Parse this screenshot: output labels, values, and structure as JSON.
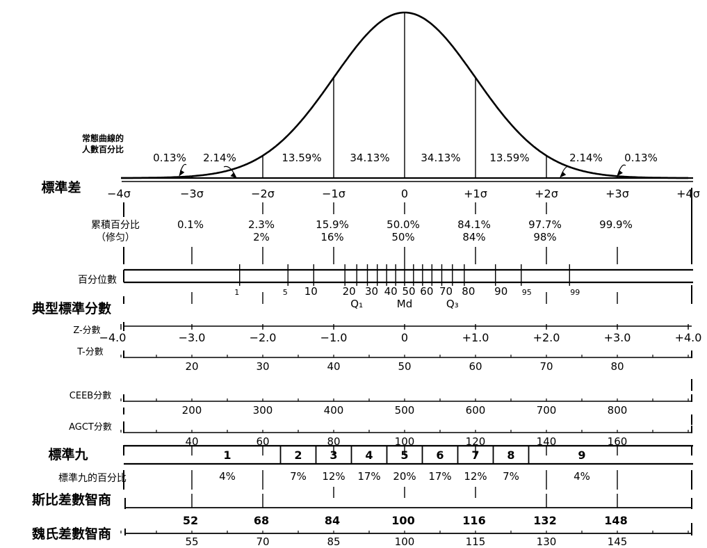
{
  "curve": {
    "label_lines": [
      "常態曲線的",
      "人數百分比"
    ],
    "segment_pcts": [
      "0.13%",
      "2.14%",
      "13.59%",
      "34.13%",
      "34.13%",
      "13.59%",
      "2.14%",
      "0.13%"
    ]
  },
  "sd": {
    "title": "標準差",
    "ticks": [
      "−4σ",
      "−3σ",
      "−2σ",
      "−1σ",
      "0",
      "+1σ",
      "+2σ",
      "+3σ",
      "+4σ"
    ]
  },
  "cumulative": {
    "title_lines": [
      "累積百分比",
      "（修匀）"
    ],
    "values": [
      "0.1%",
      "2.3%",
      "15.9%",
      "50.0%",
      "84.1%",
      "97.7%",
      "99.9%"
    ],
    "rounded": [
      "2%",
      "16%",
      "50%",
      "84%",
      "98%"
    ]
  },
  "percentile": {
    "title": "百分位數",
    "ticks": [
      {
        "p": 1,
        "label": "1"
      },
      {
        "p": 5,
        "label": "5"
      },
      {
        "p": 10,
        "label": "10"
      },
      {
        "p": 20,
        "label": "20"
      },
      {
        "p": 25,
        "label": ""
      },
      {
        "p": 30,
        "label": "30"
      },
      {
        "p": 35,
        "label": ""
      },
      {
        "p": 40,
        "label": "40"
      },
      {
        "p": 45,
        "label": ""
      },
      {
        "p": 50,
        "label": "50"
      },
      {
        "p": 55,
        "label": ""
      },
      {
        "p": 60,
        "label": "60"
      },
      {
        "p": 65,
        "label": ""
      },
      {
        "p": 70,
        "label": "70"
      },
      {
        "p": 75,
        "label": ""
      },
      {
        "p": 80,
        "label": "80"
      },
      {
        "p": 90,
        "label": "90"
      },
      {
        "p": 95,
        "label": "95"
      },
      {
        "p": 99,
        "label": "99"
      }
    ],
    "quartiles": [
      "Q₁",
      "Md",
      "Q₃"
    ]
  },
  "typical": {
    "title": "典型標準分數",
    "z": {
      "label": "Z-分數",
      "values": [
        "−4.0",
        "−3.0",
        "−2.0",
        "−1.0",
        "0",
        "+1.0",
        "+2.0",
        "+3.0",
        "+4.0"
      ]
    },
    "t": {
      "label": "T-分數",
      "values": [
        "20",
        "30",
        "40",
        "50",
        "60",
        "70",
        "80"
      ]
    },
    "ceeb": {
      "label": "CEEB分數",
      "values": [
        "200",
        "300",
        "400",
        "500",
        "600",
        "700",
        "800"
      ]
    },
    "agct": {
      "label": "AGCT分數",
      "values": [
        "40",
        "60",
        "80",
        "100",
        "120",
        "140",
        "160"
      ]
    }
  },
  "stanine": {
    "title": "標準九",
    "values": [
      "1",
      "2",
      "3",
      "4",
      "5",
      "6",
      "7",
      "8",
      "9"
    ],
    "pct_title": "標準九的百分比",
    "pcts": [
      "4%",
      "7%",
      "12%",
      "17%",
      "20%",
      "17%",
      "12%",
      "7%",
      "4%"
    ]
  },
  "binet": {
    "title": "斯比差數智商",
    "values": [
      "52",
      "68",
      "84",
      "100",
      "116",
      "132",
      "148"
    ]
  },
  "wechsler": {
    "title": "魏氏差數智商",
    "values": [
      "55",
      "70",
      "85",
      "100",
      "115",
      "130",
      "145"
    ]
  }
}
